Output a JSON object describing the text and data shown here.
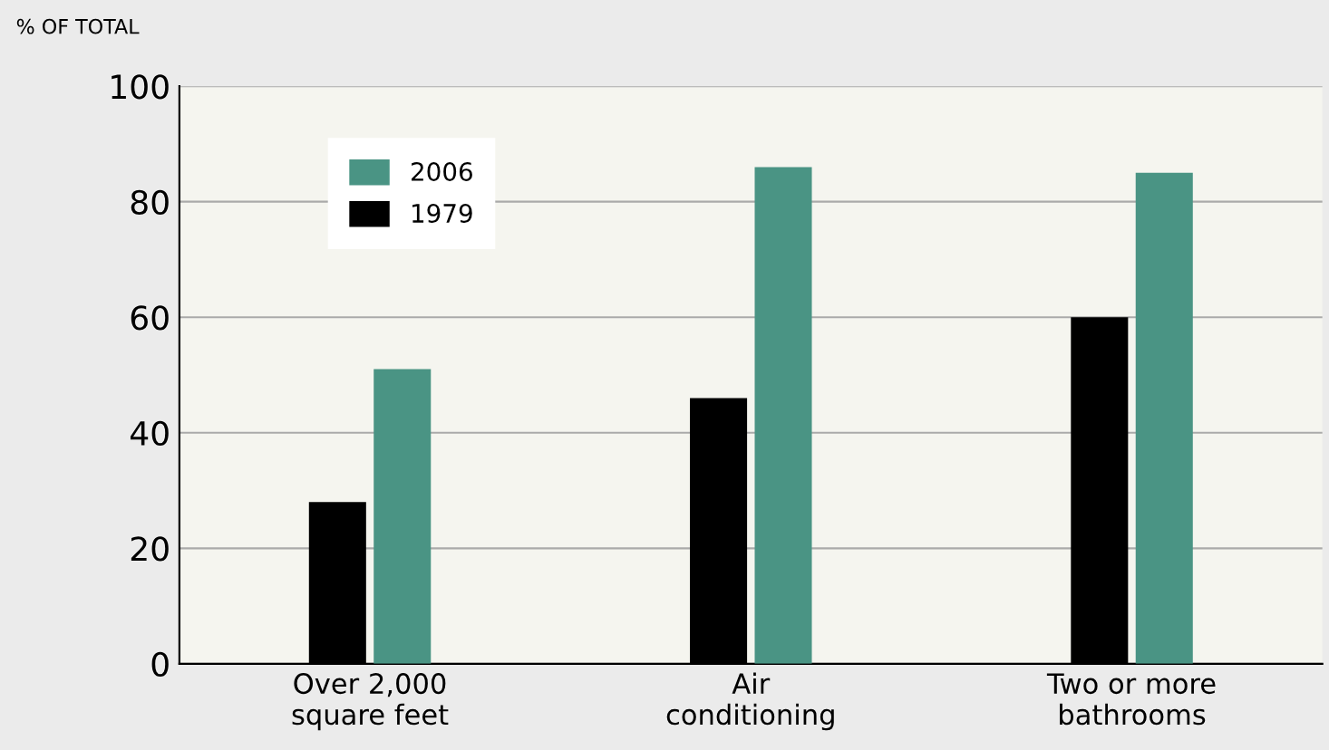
{
  "chart_data": {
    "type": "bar",
    "ylabel": "% OF TOTAL",
    "categories": [
      "Over 2,000\nsquare feet",
      "Air\nconditioning",
      "Two or more\nbathrooms"
    ],
    "series": [
      {
        "name": "1979",
        "color": "#000000",
        "values": [
          28,
          46,
          60
        ]
      },
      {
        "name": "2006",
        "color": "#4a9484",
        "values": [
          51,
          86,
          85
        ]
      }
    ],
    "ylim": [
      0,
      100
    ],
    "yticks": [
      0,
      20,
      40,
      60,
      80,
      100
    ],
    "grid": "y",
    "legend": "top left"
  }
}
